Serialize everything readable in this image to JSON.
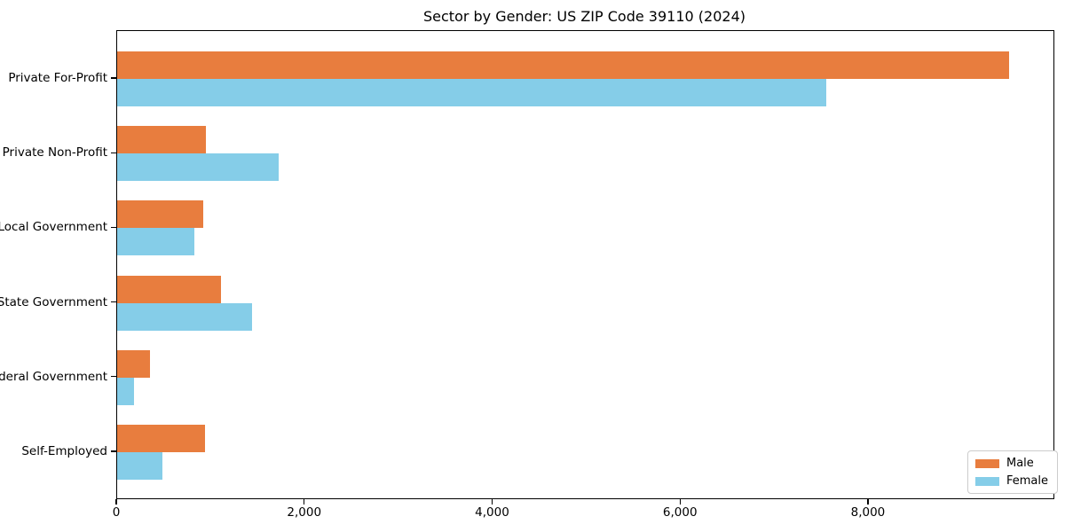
{
  "chart_data": {
    "type": "bar",
    "orientation": "horizontal",
    "title": "Sector by Gender: US ZIP Code 39110 (2024)",
    "categories": [
      "Private For-Profit",
      "Private Non-Profit",
      "Local Government",
      "State Government",
      "Federal Government",
      "Self-Employed"
    ],
    "series": [
      {
        "name": "Male",
        "color": "#E87D3E",
        "values": [
          9490,
          940,
          920,
          1100,
          350,
          935
        ]
      },
      {
        "name": "Female",
        "color": "#85CDE8",
        "values": [
          7550,
          1715,
          825,
          1435,
          180,
          485
        ]
      }
    ],
    "xlim": [
      0,
      9965
    ],
    "xticks": [
      0,
      2000,
      4000,
      6000,
      8000
    ],
    "xtick_labels": [
      "0",
      "2,000",
      "4,000",
      "6,000",
      "8,000"
    ],
    "xlabel": "",
    "ylabel": "",
    "grid": false,
    "legend_position": "lower right",
    "colors": {
      "male": "#E87D3E",
      "female": "#85CDE8",
      "axis": "#000000",
      "legend_border": "#cccccc"
    }
  }
}
